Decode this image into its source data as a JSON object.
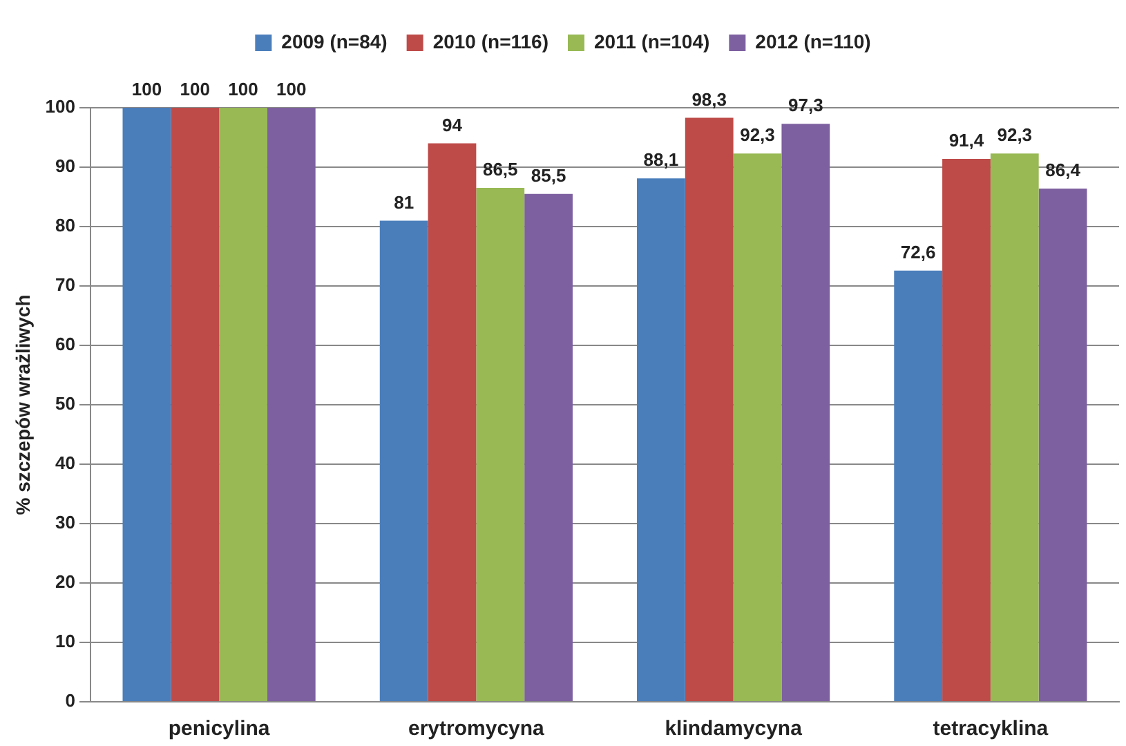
{
  "chart_data": {
    "type": "bar",
    "ylabel": "% szczepów wrażliwych",
    "categories": [
      "penicylina",
      "erytromycyna",
      "klindamycyna",
      "tetracyklina"
    ],
    "series": [
      {
        "name": "2009 (n=84)",
        "color": "#4a7ebb",
        "values": [
          100,
          81,
          88.1,
          72.6
        ],
        "value_labels": [
          "100",
          "81",
          "88,1",
          "72,6"
        ]
      },
      {
        "name": "2010 (n=116)",
        "color": "#be4b48",
        "values": [
          100,
          94,
          98.3,
          91.4
        ],
        "value_labels": [
          "100",
          "94",
          "98,3",
          "91,4"
        ]
      },
      {
        "name": "2011 (n=104)",
        "color": "#98b954",
        "values": [
          100,
          86.5,
          92.3,
          92.3
        ],
        "value_labels": [
          "100",
          "86,5",
          "92,3",
          "92,3"
        ]
      },
      {
        "name": "2012 (n=110)",
        "color": "#7d60a0",
        "values": [
          100,
          85.5,
          97.3,
          86.4
        ],
        "value_labels": [
          "100",
          "85,5",
          "97,3",
          "86,4"
        ]
      }
    ],
    "ylim": [
      0,
      100
    ],
    "yticks": [
      0,
      10,
      20,
      30,
      40,
      50,
      60,
      70,
      80,
      90,
      100
    ],
    "grid": "y",
    "legend": "top"
  }
}
